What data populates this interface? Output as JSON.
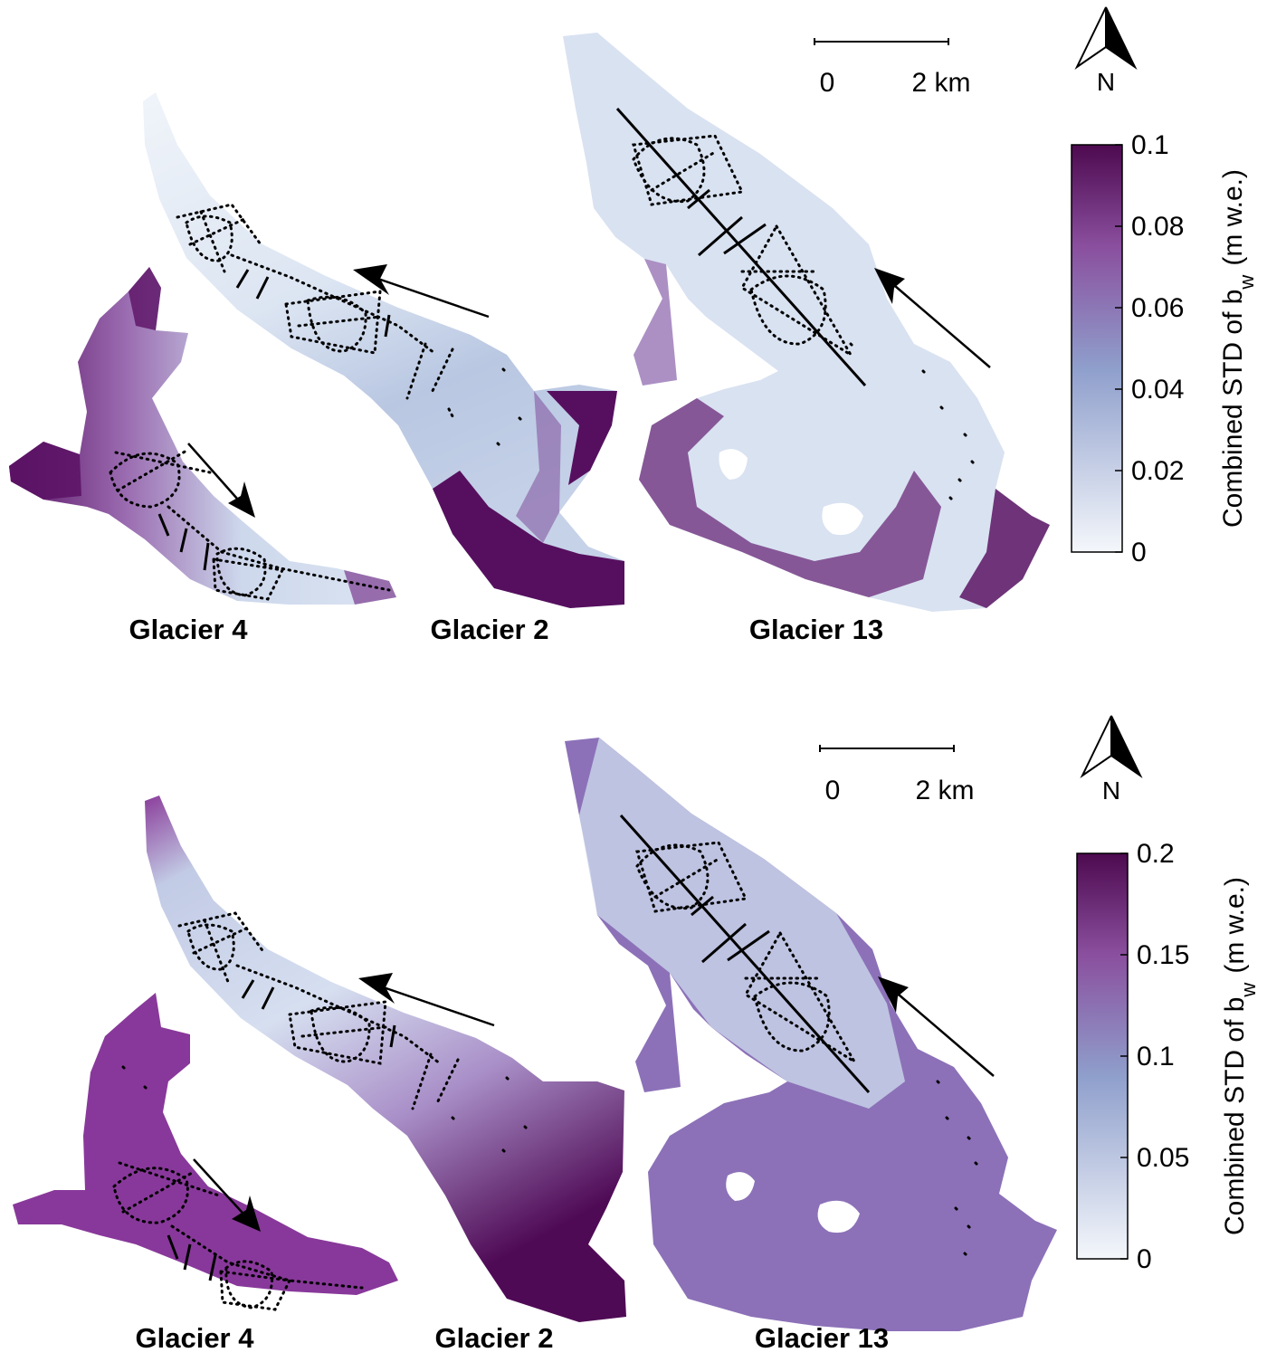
{
  "panels": [
    {
      "id": "top",
      "glacier_labels": [
        "Glacier 4",
        "Glacier 2",
        "Glacier 13"
      ],
      "scale_bar": {
        "start_label": "0",
        "end_label": "2 km"
      },
      "north_label": "N",
      "colorbar": {
        "title": "Combined STD of b",
        "title_subscript": "w",
        "title_units": "(m w.e.)",
        "ticks": [
          "0",
          "0.02",
          "0.04",
          "0.06",
          "0.08",
          "0.1"
        ],
        "min": 0,
        "max": 0.1,
        "color_low": "#f4f7fb",
        "color_mid": "#8f9fcc",
        "color_high": "#4d0a4f"
      }
    },
    {
      "id": "bottom",
      "glacier_labels": [
        "Glacier 4",
        "Glacier 2",
        "Glacier 13"
      ],
      "scale_bar": {
        "start_label": "0",
        "end_label": "2 km"
      },
      "north_label": "N",
      "colorbar": {
        "title": "Combined STD of b",
        "title_subscript": "w",
        "title_units": "(m w.e.)",
        "ticks": [
          "0",
          "0.05",
          "0.1",
          "0.15",
          "0.2"
        ],
        "min": 0,
        "max": 0.2,
        "color_low": "#f4f7fb",
        "color_mid": "#8f9fcc",
        "color_high": "#4d0a4f"
      }
    }
  ],
  "colors": {
    "low_std": "#dfe7f3",
    "mid_std": "#8a6db6",
    "high_std": "#560f5e",
    "survey_track": "#000000"
  }
}
